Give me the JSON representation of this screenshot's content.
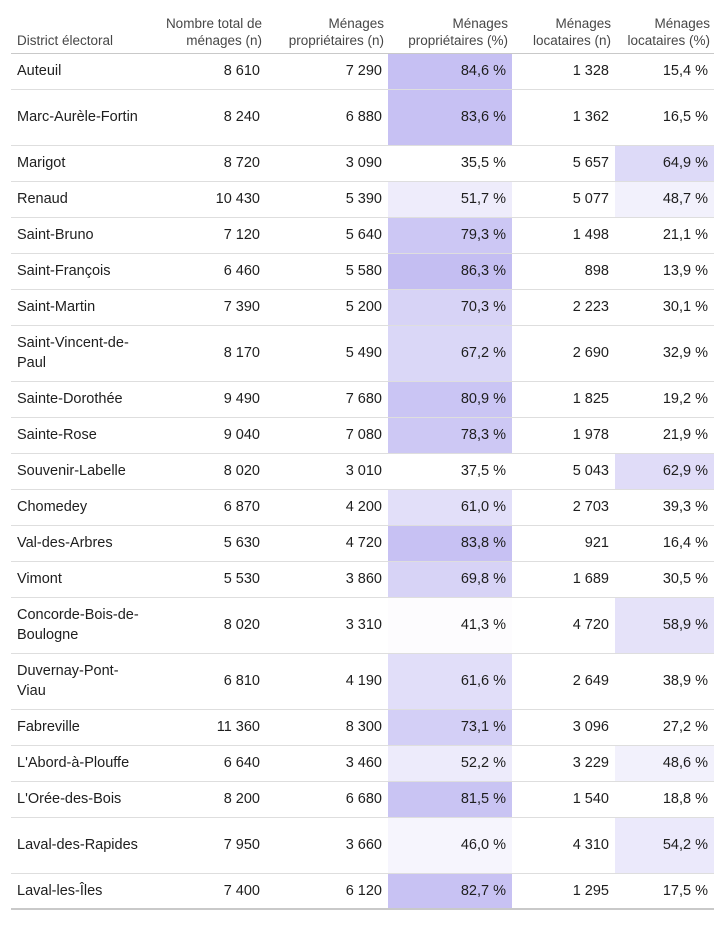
{
  "colors": {
    "heat_base": "#ffffff",
    "heat_max": "#c3bdf2"
  },
  "table": {
    "headers": [
      "District électoral",
      "Nombre total de ménages (n)",
      "Ménages propriétaires (n)",
      "Ménages propriétaires (%)",
      "Ménages locataires (n)",
      "Ménages locataires (%)"
    ],
    "rows": [
      {
        "district": "Auteuil",
        "total": "8 610",
        "own_n": "7 290",
        "own_pct": "84,6 %",
        "rent_n": "1 328",
        "rent_pct": "15,4 %"
      },
      {
        "district": "Marc-Aurèle-Fortin",
        "total": "8 240",
        "own_n": "6 880",
        "own_pct": "83,6 %",
        "rent_n": "1 362",
        "rent_pct": "16,5 %"
      },
      {
        "district": "Marigot",
        "total": "8 720",
        "own_n": "3 090",
        "own_pct": "35,5 %",
        "rent_n": "5 657",
        "rent_pct": "64,9 %"
      },
      {
        "district": "Renaud",
        "total": "10 430",
        "own_n": "5 390",
        "own_pct": "51,7 %",
        "rent_n": "5 077",
        "rent_pct": "48,7 %"
      },
      {
        "district": "Saint-Bruno",
        "total": "7 120",
        "own_n": "5 640",
        "own_pct": "79,3 %",
        "rent_n": "1 498",
        "rent_pct": "21,1 %"
      },
      {
        "district": "Saint-François",
        "total": "6 460",
        "own_n": "5 580",
        "own_pct": "86,3 %",
        "rent_n": "898",
        "rent_pct": "13,9 %"
      },
      {
        "district": "Saint-Martin",
        "total": "7 390",
        "own_n": "5 200",
        "own_pct": "70,3 %",
        "rent_n": "2 223",
        "rent_pct": "30,1 %"
      },
      {
        "district": "Saint-Vincent-de-Paul",
        "total": "8 170",
        "own_n": "5 490",
        "own_pct": "67,2 %",
        "rent_n": "2 690",
        "rent_pct": "32,9 %"
      },
      {
        "district": "Sainte-Dorothée",
        "total": "9 490",
        "own_n": "7 680",
        "own_pct": "80,9 %",
        "rent_n": "1 825",
        "rent_pct": "19,2 %"
      },
      {
        "district": "Sainte-Rose",
        "total": "9 040",
        "own_n": "7 080",
        "own_pct": "78,3 %",
        "rent_n": "1 978",
        "rent_pct": "21,9 %"
      },
      {
        "district": "Souvenir-Labelle",
        "total": "8 020",
        "own_n": "3 010",
        "own_pct": "37,5 %",
        "rent_n": "5 043",
        "rent_pct": "62,9 %"
      },
      {
        "district": "Chomedey",
        "total": "6 870",
        "own_n": "4 200",
        "own_pct": "61,0 %",
        "rent_n": "2 703",
        "rent_pct": "39,3 %"
      },
      {
        "district": "Val-des-Arbres",
        "total": "5 630",
        "own_n": "4 720",
        "own_pct": "83,8 %",
        "rent_n": "921",
        "rent_pct": "16,4 %"
      },
      {
        "district": "Vimont",
        "total": "5 530",
        "own_n": "3 860",
        "own_pct": "69,8 %",
        "rent_n": "1 689",
        "rent_pct": "30,5 %"
      },
      {
        "district": "Concorde-Bois-de-Boulogne",
        "total": "8 020",
        "own_n": "3 310",
        "own_pct": "41,3 %",
        "rent_n": "4 720",
        "rent_pct": "58,9 %"
      },
      {
        "district": "Duvernay-Pont-Viau",
        "total": "6 810",
        "own_n": "4 190",
        "own_pct": "61,6 %",
        "rent_n": "2 649",
        "rent_pct": "38,9 %"
      },
      {
        "district": "Fabreville",
        "total": "11 360",
        "own_n": "8 300",
        "own_pct": "73,1 %",
        "rent_n": "3 096",
        "rent_pct": "27,2 %"
      },
      {
        "district": "L'Abord-à-Plouffe",
        "total": "6 640",
        "own_n": "3 460",
        "own_pct": "52,2 %",
        "rent_n": "3 229",
        "rent_pct": "48,6 %"
      },
      {
        "district": "L'Orée-des-Bois",
        "total": "8 200",
        "own_n": "6 680",
        "own_pct": "81,5 %",
        "rent_n": "1 540",
        "rent_pct": "18,8 %"
      },
      {
        "district": "Laval-des-Rapides",
        "total": "7 950",
        "own_n": "3 660",
        "own_pct": "46,0 %",
        "rent_n": "4 310",
        "rent_pct": "54,2 %"
      },
      {
        "district": "Laval-les-Îles",
        "total": "7 400",
        "own_n": "6 120",
        "own_pct": "82,7 %",
        "rent_n": "1 295",
        "rent_pct": "17,5 %"
      }
    ]
  }
}
